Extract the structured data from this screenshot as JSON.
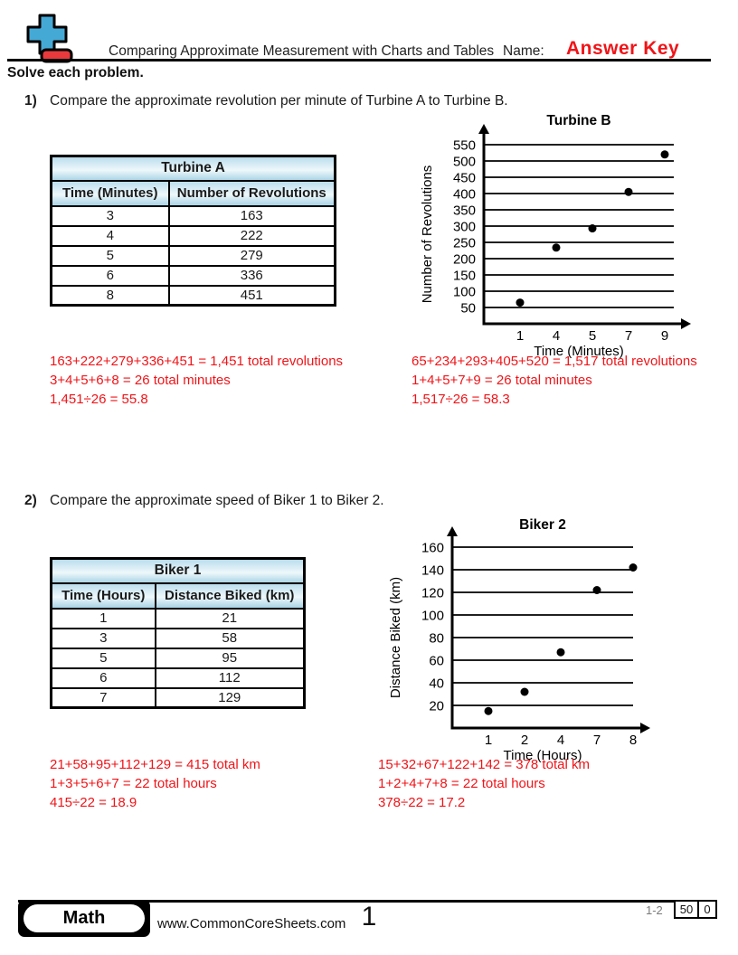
{
  "header": {
    "title": "Comparing Approximate Measurement with Charts and Tables",
    "name_label": "Name:",
    "answer_key": "Answer Key"
  },
  "instructions": "Solve each problem.",
  "problems": [
    {
      "number": "1)",
      "text": "Compare the approximate revolution per minute of Turbine A to Turbine B.",
      "table": {
        "title": "Turbine A",
        "columns": [
          "Time (Minutes)",
          "Number of Revolutions"
        ],
        "rows": [
          [
            "3",
            "163"
          ],
          [
            "4",
            "222"
          ],
          [
            "5",
            "279"
          ],
          [
            "6",
            "336"
          ],
          [
            "8",
            "451"
          ]
        ]
      },
      "answers_left": [
        "163+222+279+336+451 = 1,451 total revolutions",
        "3+4+5+6+8 = 26 total minutes",
        "1,451÷26 = 55.8"
      ],
      "answers_right": [
        "65+234+293+405+520 = 1,517 total revolutions",
        "1+4+5+7+9 = 26 total minutes",
        "1,517÷26 = 58.3"
      ]
    },
    {
      "number": "2)",
      "text": "Compare the approximate speed of Biker 1 to Biker 2.",
      "table": {
        "title": "Biker 1",
        "columns": [
          "Time (Hours)",
          "Distance Biked (km)"
        ],
        "rows": [
          [
            "1",
            "21"
          ],
          [
            "3",
            "58"
          ],
          [
            "5",
            "95"
          ],
          [
            "6",
            "112"
          ],
          [
            "7",
            "129"
          ]
        ]
      },
      "answers_left": [
        "21+58+95+112+129 = 415 total km",
        "1+3+5+6+7 = 22 total hours",
        "415÷22 = 18.9"
      ],
      "answers_right": [
        "15+32+67+122+142 = 378 total km",
        "1+2+4+7+8 = 22 total hours",
        "378÷22 = 17.2"
      ]
    }
  ],
  "chart_data": [
    {
      "type": "scatter",
      "title": "Turbine B",
      "xlabel": "Time (Minutes)",
      "ylabel": "Number of Revolutions",
      "x": [
        1,
        4,
        5,
        7,
        9
      ],
      "y": [
        65,
        234,
        293,
        405,
        520
      ],
      "y_ticks": [
        50,
        100,
        150,
        200,
        250,
        300,
        350,
        400,
        450,
        500,
        550
      ],
      "ylim": [
        0,
        575
      ],
      "grid": "horizontal-only",
      "legend": "none"
    },
    {
      "type": "scatter",
      "title": "Biker 2",
      "xlabel": "Time (Hours)",
      "ylabel": "Distance Biked (km)",
      "x": [
        1,
        2,
        4,
        7,
        8
      ],
      "y": [
        15,
        32,
        67,
        122,
        142
      ],
      "y_ticks": [
        20,
        40,
        60,
        80,
        100,
        120,
        140,
        160
      ],
      "ylim": [
        0,
        170
      ],
      "grid": "horizontal-only",
      "legend": "none"
    }
  ],
  "footer": {
    "subject": "Math",
    "website": "www.CommonCoreSheets.com",
    "page": "1",
    "problem_range": "1-2",
    "score_cells": [
      "50",
      "0"
    ]
  },
  "colors": {
    "answer_red": "#f01418",
    "table_header_top": "#bcdeed",
    "table_header_mid": "#eef8fb",
    "table_header_bottom": "#a9d3e5",
    "logo_blue": "#45a9d6",
    "logo_red": "#e8393d",
    "footer_range_gray": "#7a7a7a"
  }
}
